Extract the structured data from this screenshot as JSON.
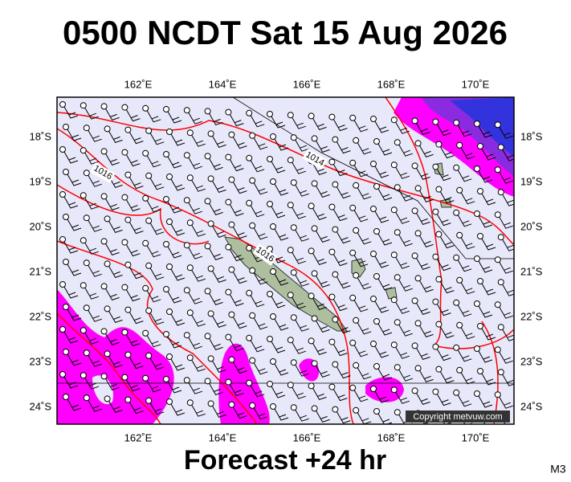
{
  "title": "0500 NCDT Sat 15 Aug 2026",
  "footer": "Forecast +24 hr",
  "corner_label": "M3",
  "map": {
    "lon_labels_top": [
      "162˚E",
      "164˚E",
      "166˚E",
      "168˚E",
      "170˚E"
    ],
    "lon_labels_bottom": [
      "162˚E",
      "164˚E",
      "166˚E",
      "168˚E",
      "170˚E"
    ],
    "lat_labels_left": [
      "18˚S",
      "19˚S",
      "20˚S",
      "21˚S",
      "22˚S",
      "23˚S",
      "24˚S"
    ],
    "lat_labels_right": [
      "18˚S",
      "19˚S",
      "20˚S",
      "21˚S",
      "22˚S",
      "23˚S",
      "24˚S"
    ],
    "isobar_labels": [
      "1014",
      "1016",
      "1016"
    ],
    "copyright": "Copyright metvuw.com"
  }
}
